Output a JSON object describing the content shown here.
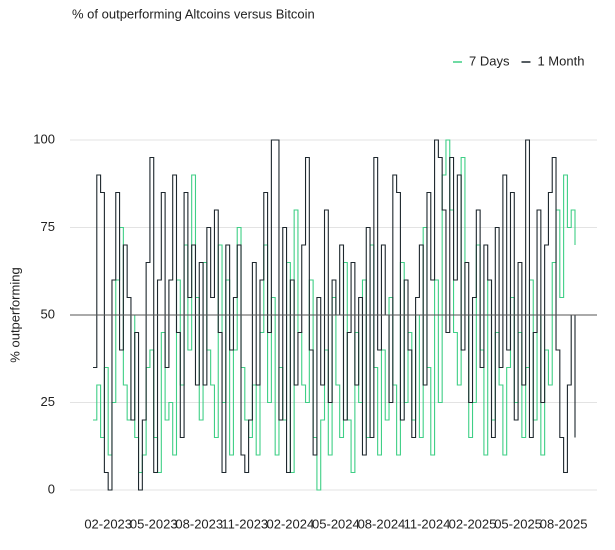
{
  "chart_data": {
    "type": "line",
    "title": "% of outperforming Altcoins versus Bitcoin",
    "y_label": "% outperforming",
    "categories": [
      null,
      null,
      null,
      null,
      "02-2023",
      null,
      null,
      null,
      null,
      null,
      null,
      null,
      null,
      null,
      null,
      null,
      "05-2023",
      null,
      null,
      null,
      null,
      null,
      null,
      null,
      null,
      null,
      null,
      null,
      "08-2023",
      null,
      null,
      null,
      null,
      null,
      null,
      null,
      null,
      null,
      null,
      null,
      "11-2023",
      null,
      null,
      null,
      null,
      null,
      null,
      null,
      null,
      null,
      null,
      null,
      "02-2024",
      null,
      null,
      null,
      null,
      null,
      null,
      null,
      null,
      null,
      null,
      null,
      "05-2024",
      null,
      null,
      null,
      null,
      null,
      null,
      null,
      null,
      null,
      null,
      null,
      "08-2024",
      null,
      null,
      null,
      null,
      null,
      null,
      null,
      null,
      null,
      null,
      null,
      "11-2024",
      null,
      null,
      null,
      null,
      null,
      null,
      null,
      null,
      null,
      null,
      null,
      "02-2025",
      null,
      null,
      null,
      null,
      null,
      null,
      null,
      null,
      null,
      null,
      null,
      "05-2025",
      null,
      null,
      null,
      null,
      null,
      null,
      null,
      null,
      null,
      null,
      null,
      "08-2025",
      null,
      null,
      null
    ],
    "series": [
      {
        "name": "7 Days",
        "color": "#3fcf86",
        "values": [
          20,
          30,
          15,
          35,
          10,
          25,
          60,
          75,
          30,
          20,
          50,
          15,
          5,
          10,
          35,
          40,
          15,
          5,
          45,
          20,
          25,
          10,
          60,
          30,
          70,
          40,
          90,
          55,
          20,
          65,
          40,
          30,
          15,
          70,
          25,
          60,
          10,
          40,
          75,
          35,
          20,
          15,
          30,
          10,
          45,
          70,
          25,
          55,
          10,
          35,
          20,
          65,
          5,
          80,
          45,
          30,
          25,
          60,
          15,
          0,
          20,
          40,
          10,
          55,
          30,
          15,
          65,
          20,
          5,
          45,
          25,
          60,
          15,
          70,
          35,
          10,
          40,
          20,
          55,
          30,
          10,
          65,
          25,
          45,
          20,
          50,
          15,
          75,
          35,
          10,
          60,
          25,
          90,
          100,
          80,
          45,
          30,
          95,
          50,
          15,
          25,
          70,
          40,
          10,
          60,
          20,
          45,
          30,
          10,
          35,
          55,
          25,
          45,
          15,
          35,
          60,
          20,
          50,
          10,
          40,
          30,
          65,
          80,
          55,
          90,
          75,
          80,
          70
        ]
      },
      {
        "name": "1 Month",
        "color": "#1d272d",
        "values": [
          35,
          90,
          85,
          5,
          0,
          60,
          85,
          40,
          70,
          55,
          20,
          45,
          0,
          20,
          65,
          95,
          5,
          60,
          85,
          35,
          60,
          90,
          45,
          15,
          85,
          55,
          70,
          30,
          65,
          30,
          75,
          55,
          80,
          45,
          5,
          70,
          40,
          55,
          70,
          10,
          5,
          20,
          65,
          30,
          60,
          85,
          45,
          100,
          100,
          20,
          75,
          5,
          60,
          30,
          45,
          70,
          95,
          40,
          10,
          55,
          30,
          80,
          25,
          60,
          50,
          70,
          20,
          45,
          65,
          30,
          55,
          10,
          75,
          15,
          95,
          40,
          70,
          50,
          25,
          90,
          85,
          20,
          60,
          40,
          15,
          55,
          70,
          30,
          85,
          60,
          100,
          95,
          80,
          45,
          95,
          60,
          90,
          40,
          65,
          25,
          55,
          80,
          35,
          70,
          60,
          15,
          75,
          35,
          90,
          40,
          85,
          20,
          65,
          30,
          100,
          15,
          45,
          80,
          25,
          70,
          85,
          95,
          40,
          15,
          5,
          30,
          50,
          15
        ]
      }
    ],
    "ylim": [
      0,
      100
    ],
    "yticks": [
      0,
      25,
      50,
      75,
      100
    ],
    "grid": true,
    "hline": 50,
    "step": true,
    "legend": "top-right"
  }
}
